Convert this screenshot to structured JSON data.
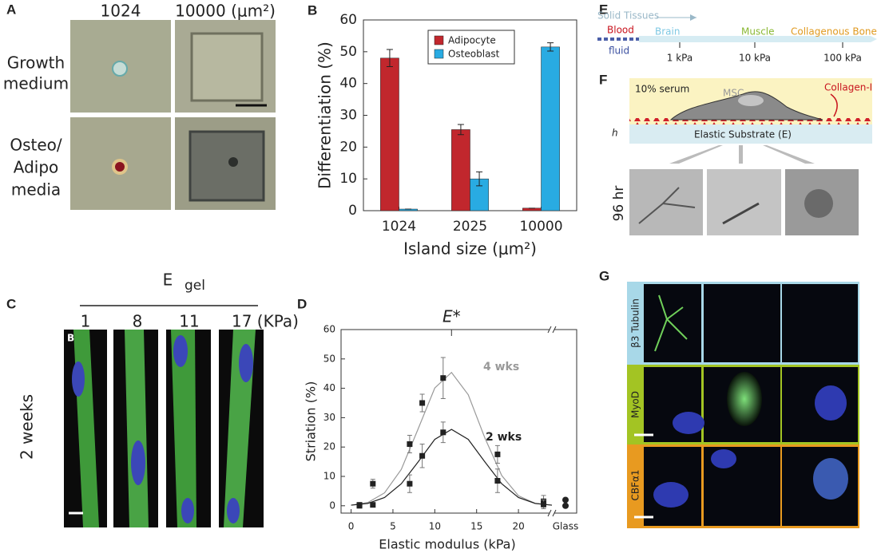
{
  "panels": {
    "a": {
      "letter": "A",
      "columns": [
        "1024",
        "10000 (μm²)"
      ],
      "rows": [
        [
          "Growth",
          "medium"
        ],
        [
          "Osteo/",
          "Adipo",
          "media"
        ]
      ]
    },
    "c": {
      "letter": "C",
      "header": "E",
      "header_subscript": "gel",
      "columns": [
        "1",
        "8",
        "11",
        "17 (KPa)"
      ],
      "row_label": "2 weeks",
      "inset_letter": "B"
    },
    "e": {
      "letter": "E",
      "fluid": [
        "Blood",
        "fluid"
      ],
      "solid_label": "Solid Tissues",
      "tissues": [
        "Brain",
        "Muscle",
        "Collagenous Bone"
      ],
      "stiffness": [
        "1 kPa",
        "10 kPa",
        "100 kPa"
      ]
    },
    "f": {
      "letter": "F",
      "medium": "10% serum",
      "cell": "MSC",
      "matrix": "Collagen-I",
      "thickness": "h",
      "substrate": "Elastic Substrate (E)",
      "time": "96 hr"
    },
    "g": {
      "letter": "G",
      "rows": [
        "β3 Tubulin",
        "MyoD",
        "CBFα1"
      ]
    }
  },
  "chart_data": [
    {
      "type": "bar",
      "panel": "B",
      "xlabel": "Island size (μm²)",
      "ylabel": "Differentiation (%)",
      "categories": [
        "1024",
        "2025",
        "10000"
      ],
      "series": [
        {
          "name": "Adipocyte",
          "color": "#c1272d",
          "values": [
            48,
            25.5,
            0.8
          ],
          "errors": [
            2.7,
            1.6,
            0
          ]
        },
        {
          "name": "Osteoblast",
          "color": "#29abe2",
          "values": [
            0.5,
            10,
            51.5
          ],
          "errors": [
            0,
            2.2,
            1.3
          ]
        }
      ],
      "ylim": [
        0,
        60
      ],
      "yticks": [
        0,
        10,
        20,
        30,
        40,
        50,
        60
      ],
      "legend": "top"
    },
    {
      "type": "scatter",
      "panel": "D",
      "xlabel": "Elastic modulus (kPa)",
      "ylabel": "Striation (%)",
      "annotation": {
        "text": "E*",
        "x": 12
      },
      "xlim": [
        -1.2,
        24
      ],
      "xticks": [
        0,
        5,
        10,
        15,
        20
      ],
      "ylim": [
        -2.5,
        60
      ],
      "yticks": [
        0,
        10,
        20,
        30,
        40,
        50,
        60
      ],
      "marker_color": "#222",
      "series": [
        {
          "name": "4 wks",
          "color": "#999999",
          "x": [
            1,
            2.6,
            7,
            8.5,
            11,
            17.5,
            23
          ],
          "values": [
            0.3,
            7.5,
            21,
            35,
            43.5,
            17.5,
            1.5
          ],
          "errors": [
            0,
            1.5,
            3,
            3,
            7,
            3,
            2
          ]
        },
        {
          "name": "2 wks",
          "color": "#222222",
          "x": [
            1,
            2.6,
            7,
            8.5,
            11,
            17.5,
            23
          ],
          "values": [
            0,
            0.3,
            7.5,
            17,
            25,
            8.5,
            0.5
          ],
          "errors": [
            0,
            0,
            3,
            4,
            3.5,
            4,
            1.5
          ]
        }
      ],
      "curves": [
        {
          "color": "#999999",
          "x": [
            0,
            2,
            4,
            6,
            8,
            10,
            12,
            14,
            16,
            18,
            20,
            22,
            24
          ],
          "values": [
            0.2,
            1.1,
            4.4,
            12.4,
            26.1,
            40.1,
            45.4,
            37.8,
            23,
            10.3,
            3.4,
            0.8,
            0.2
          ]
        },
        {
          "color": "#222222",
          "x": [
            0,
            2,
            4,
            6,
            8,
            10,
            12,
            14,
            16,
            18,
            20,
            22,
            24
          ],
          "values": [
            0.2,
            0.8,
            2.8,
            7.5,
            14.9,
            22.6,
            26,
            22.6,
            14.9,
            7.5,
            2.8,
            0.8,
            0.2
          ]
        }
      ],
      "glass": {
        "label": "Glass",
        "values": [
          2,
          0
        ],
        "color": "#222222"
      }
    }
  ]
}
